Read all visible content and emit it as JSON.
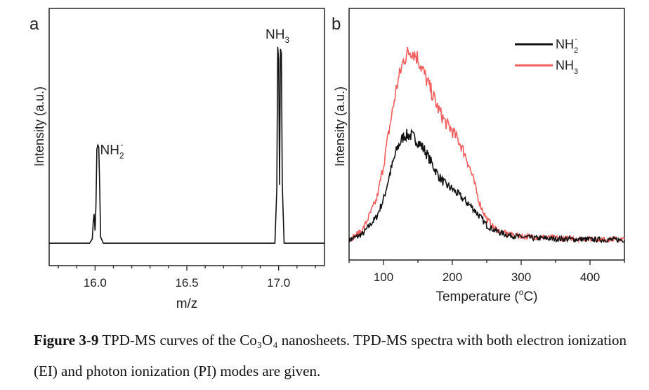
{
  "caption": {
    "label": "Figure 3-9",
    "text": " TPD-MS curves of the Co₃O₄ nanosheets. TPD-MS spectra with both electron ionization (EI) and photon ionization (PI) modes are given."
  },
  "chart_data": [
    {
      "panel": "a",
      "type": "line",
      "xlabel": "m/z",
      "ylabel": "Intensity (a.u.)",
      "xlim": [
        15.75,
        17.25
      ],
      "xticks": [
        16.0,
        16.5,
        17.0
      ],
      "xtick_labels": [
        "16.0",
        "16.5",
        "17.0"
      ],
      "ylim": [
        0,
        1.05
      ],
      "series": [
        {
          "color": "#111111",
          "x": [
            15.75,
            15.97,
            15.985,
            15.99,
            15.995,
            16.0,
            16.005,
            16.01,
            16.015,
            16.02,
            16.025,
            16.03,
            16.045,
            16.98,
            16.99,
            16.995,
            17.0,
            17.005,
            17.01,
            17.015,
            17.02,
            17.03,
            17.25
          ],
          "y": [
            0.02,
            0.02,
            0.04,
            0.12,
            0.16,
            0.08,
            0.2,
            0.47,
            0.49,
            0.48,
            0.3,
            0.05,
            0.02,
            0.02,
            0.28,
            0.96,
            0.9,
            0.3,
            0.95,
            0.93,
            0.3,
            0.02,
            0.02
          ]
        }
      ],
      "annotations": [
        {
          "text": "NH",
          "sub": "2",
          "sup": "-",
          "x": 16.02,
          "y": 0.46
        },
        {
          "text": "NH",
          "sub": "3",
          "x": 16.99,
          "y": 1.0
        }
      ]
    },
    {
      "panel": "b",
      "type": "line",
      "xlabel": "Temperature (°C)",
      "ylabel": "Intensity (a.u.)",
      "xlim": [
        50,
        450
      ],
      "xticks": [
        100,
        200,
        300,
        400
      ],
      "xtick_labels": [
        "100",
        "200",
        "300",
        "400"
      ],
      "ylim": [
        0,
        1.0
      ],
      "legend_position": "top-right",
      "series": [
        {
          "name": "NH2-",
          "color": "#111111",
          "x": [
            50,
            70,
            90,
            100,
            110,
            120,
            130,
            140,
            150,
            160,
            170,
            180,
            190,
            200,
            210,
            220,
            230,
            240,
            250,
            260,
            270,
            280,
            290,
            300,
            320,
            340,
            360,
            380,
            400,
            420,
            450
          ],
          "y": [
            0.01,
            0.04,
            0.12,
            0.2,
            0.33,
            0.44,
            0.5,
            0.5,
            0.47,
            0.43,
            0.37,
            0.31,
            0.27,
            0.25,
            0.22,
            0.19,
            0.16,
            0.12,
            0.08,
            0.06,
            0.045,
            0.035,
            0.03,
            0.025,
            0.02,
            0.018,
            0.016,
            0.015,
            0.014,
            0.013,
            0.012
          ]
        },
        {
          "name": "NH3",
          "color": "#f25f5f",
          "x": [
            50,
            70,
            90,
            100,
            110,
            120,
            130,
            140,
            150,
            160,
            170,
            180,
            190,
            200,
            210,
            220,
            230,
            240,
            250,
            260,
            270,
            280,
            290,
            300,
            320,
            340,
            360,
            380,
            400,
            420,
            450
          ],
          "y": [
            0.01,
            0.06,
            0.2,
            0.36,
            0.56,
            0.74,
            0.86,
            0.9,
            0.86,
            0.78,
            0.7,
            0.62,
            0.56,
            0.52,
            0.47,
            0.4,
            0.3,
            0.18,
            0.11,
            0.07,
            0.05,
            0.04,
            0.035,
            0.03,
            0.025,
            0.022,
            0.02,
            0.018,
            0.016,
            0.015,
            0.014
          ]
        }
      ],
      "legend": [
        {
          "text": "NH",
          "sub": "2",
          "sup": "-",
          "color": "#111111"
        },
        {
          "text": "NH",
          "sub": "3",
          "color": "#f25f5f"
        }
      ]
    }
  ]
}
